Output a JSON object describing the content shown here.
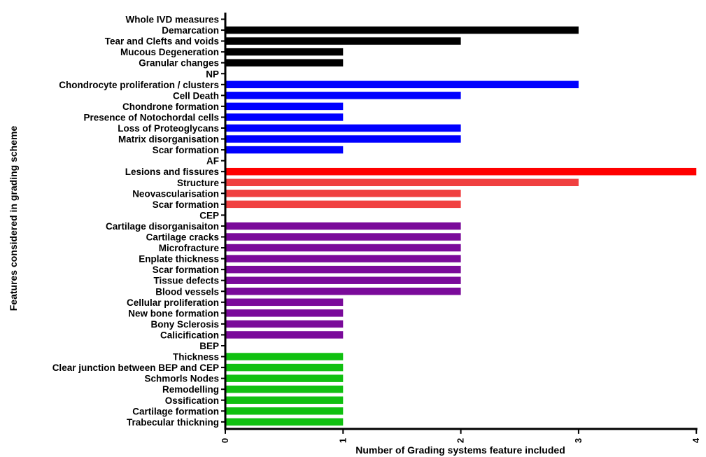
{
  "chart_data": {
    "type": "bar",
    "orientation": "horizontal",
    "xlabel": "Number of Grading systems feature included",
    "ylabel": "Features considered in grading scheme",
    "xlim": [
      0,
      4
    ],
    "xticks": [
      "0",
      "1",
      "2",
      "3",
      "4"
    ],
    "grid": false,
    "legend": "none",
    "colors": {
      "Whole IVD measures": "#000000",
      "NP": "#0000ff",
      "AF": "#ff0000",
      "AF_light": "#f04040",
      "CEP": "#7a0a9a",
      "BEP": "#10c010"
    },
    "categories": [
      "Whole IVD measures",
      "Demarcation",
      "Tear and Clefts and voids",
      "Mucous Degeneration",
      "Granular changes",
      "NP",
      "Chondrocyte proliferation / clusters",
      "Cell Death",
      "Chondrone formation",
      "Presence of Notochordal cells",
      "Loss of Proteoglycans",
      "Matrix disorganisation",
      "Scar formation",
      "AF",
      "Lesions and fissures",
      "Structure",
      "Neovascularisation",
      "Scar formation",
      "CEP",
      "Cartilage disorganisaiton",
      "Cartilage cracks",
      "Microfracture",
      "Enplate thickness",
      "Scar formation",
      "Tissue defects",
      "Blood vessels",
      "Cellular proliferation",
      "New bone formation",
      "Bony Sclerosis",
      "Calicification",
      "BEP",
      "Thickness",
      "Clear junction between BEP and CEP",
      "Schmorls Nodes",
      "Remodelling",
      "Ossification",
      "Cartilage formation",
      "Trabecular thickning"
    ],
    "values": [
      0,
      3,
      2,
      1,
      1,
      0,
      3,
      2,
      1,
      1,
      2,
      2,
      1,
      0,
      4,
      3,
      2,
      2,
      0,
      2,
      2,
      2,
      2,
      2,
      2,
      2,
      1,
      1,
      1,
      1,
      0,
      1,
      1,
      1,
      1,
      1,
      1,
      1
    ],
    "bar_colors": [
      "#000000",
      "#000000",
      "#000000",
      "#000000",
      "#000000",
      "#0000ff",
      "#0000ff",
      "#0000ff",
      "#0000ff",
      "#0000ff",
      "#0000ff",
      "#0000ff",
      "#0000ff",
      "#ff0000",
      "#ff0000",
      "#f04040",
      "#f04040",
      "#f04040",
      "#7a0a9a",
      "#7a0a9a",
      "#7a0a9a",
      "#7a0a9a",
      "#7a0a9a",
      "#7a0a9a",
      "#7a0a9a",
      "#7a0a9a",
      "#7a0a9a",
      "#7a0a9a",
      "#7a0a9a",
      "#7a0a9a",
      "#10c010",
      "#10c010",
      "#10c010",
      "#10c010",
      "#10c010",
      "#10c010",
      "#10c010",
      "#10c010"
    ]
  }
}
